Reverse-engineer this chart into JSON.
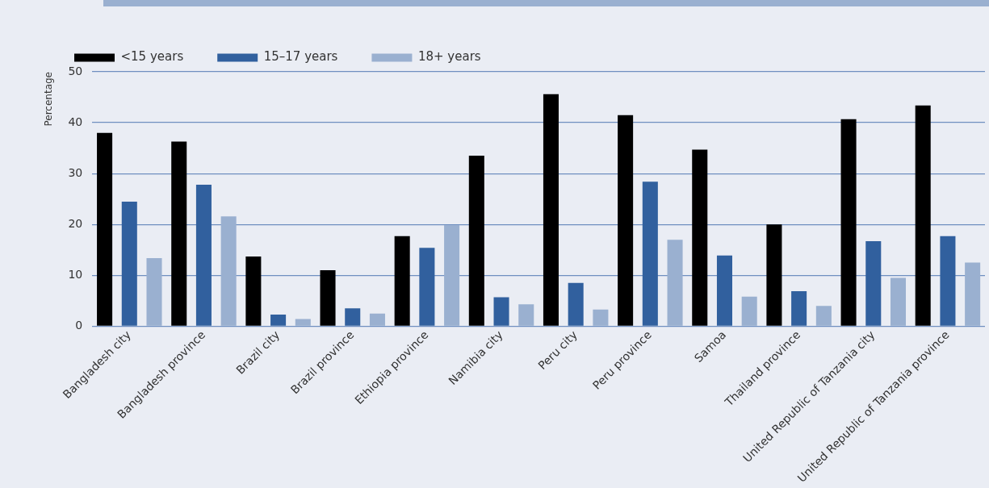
{
  "chart_data": {
    "type": "bar",
    "ylabel": "Percentage",
    "categories": [
      "Bangladesh city",
      "Bangladesh province",
      "Brazil city",
      "Brazil province",
      "Ethiopia province",
      "Namibia city",
      "Peru city",
      "Peru province",
      "Samoa",
      "Thailand province",
      "United Republic of Tanzania city",
      "United Republic of Tanzania province"
    ],
    "series": [
      {
        "name": "<15 years",
        "color": "#000000",
        "values": [
          38,
          36.3,
          13.7,
          11,
          17.7,
          33.5,
          45.6,
          41.5,
          34.7,
          20,
          40.7,
          43.4
        ]
      },
      {
        "name": "15–17 years",
        "color": "#31609e",
        "values": [
          24.5,
          27.8,
          2.3,
          3.5,
          15.4,
          5.7,
          8.5,
          28.4,
          13.9,
          6.9,
          16.7,
          17.7
        ]
      },
      {
        "name": "18+ years",
        "color": "#9ab0d0",
        "values": [
          13.4,
          21.6,
          1.4,
          2.5,
          19.9,
          4.3,
          3.3,
          17,
          5.8,
          4,
          9.5,
          12.5
        ]
      }
    ],
    "ylim": [
      0,
      50
    ],
    "yticks": [
      0,
      10,
      20,
      30,
      40,
      50
    ],
    "grid": "y",
    "legend": "top left"
  }
}
